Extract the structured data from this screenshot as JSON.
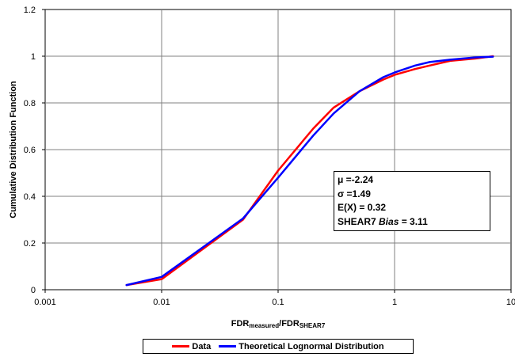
{
  "chart_data": {
    "type": "line",
    "xscale": "log",
    "xlim": [
      0.001,
      10
    ],
    "ylim": [
      0,
      1.2
    ],
    "grid": true,
    "xlabel": "FDR",
    "xlabel_sub1": "measured",
    "xlabel_sep": "/FDR",
    "xlabel_sub2": "SHEAR7",
    "ylabel": "Cumulative Distribution Function",
    "x_tick_labels": [
      "0.001",
      "0.01",
      "0.1",
      "1",
      "10"
    ],
    "x_ticks": [
      0.001,
      0.01,
      0.1,
      1,
      10
    ],
    "y_tick_labels": [
      "0",
      "0.2",
      "0.4",
      "0.6",
      "0.8",
      "1",
      "1.2"
    ],
    "y_ticks": [
      0,
      0.2,
      0.4,
      0.6,
      0.8,
      1.0,
      1.2
    ],
    "legend_position": "bottom",
    "series": [
      {
        "name": "Data",
        "color": "#ff0000",
        "x": [
          0.005,
          0.01,
          0.05,
          0.1,
          0.2,
          0.3,
          0.5,
          0.8,
          1.0,
          1.5,
          2.0,
          3.0,
          5.0,
          7.0
        ],
        "y": [
          0.02,
          0.045,
          0.3,
          0.51,
          0.69,
          0.78,
          0.85,
          0.9,
          0.92,
          0.945,
          0.96,
          0.98,
          0.99,
          1.0
        ]
      },
      {
        "name": "Theoretical Lognormal Distribution",
        "color": "#0000ff",
        "x": [
          0.005,
          0.01,
          0.05,
          0.1,
          0.2,
          0.3,
          0.5,
          0.8,
          1.0,
          1.5,
          2.0,
          3.0,
          5.0,
          7.0
        ],
        "y": [
          0.02,
          0.055,
          0.305,
          0.48,
          0.66,
          0.755,
          0.85,
          0.91,
          0.93,
          0.96,
          0.975,
          0.985,
          0.995,
          0.998
        ]
      }
    ],
    "annotation": {
      "mu": "μ =-2.24",
      "sigma": "σ =1.49",
      "ex": "E(X) = 0.32",
      "bias_prefix": "SHEAR7 ",
      "bias_label": "Bias",
      "bias_value": " = 3.11"
    }
  }
}
